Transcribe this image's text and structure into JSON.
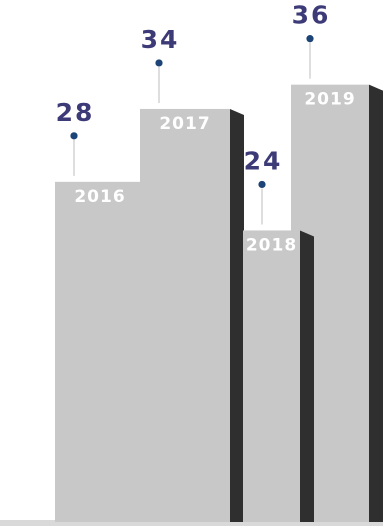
{
  "chart_data": {
    "type": "bar",
    "categories": [
      "2016",
      "2017",
      "2018",
      "2019"
    ],
    "values": [
      28,
      34,
      24,
      36
    ],
    "ylim": [
      0,
      40
    ],
    "grid": false,
    "legend": "none"
  },
  "colors": {
    "bar_face": "#c8c8c8",
    "bar_shadow": "#2f2f2f",
    "value_text": "#3d3a78",
    "category_text": "#ffffff",
    "marker": "#1c4476",
    "leader_line": "#bdbdbd",
    "baseline": "#d9d9d9"
  }
}
